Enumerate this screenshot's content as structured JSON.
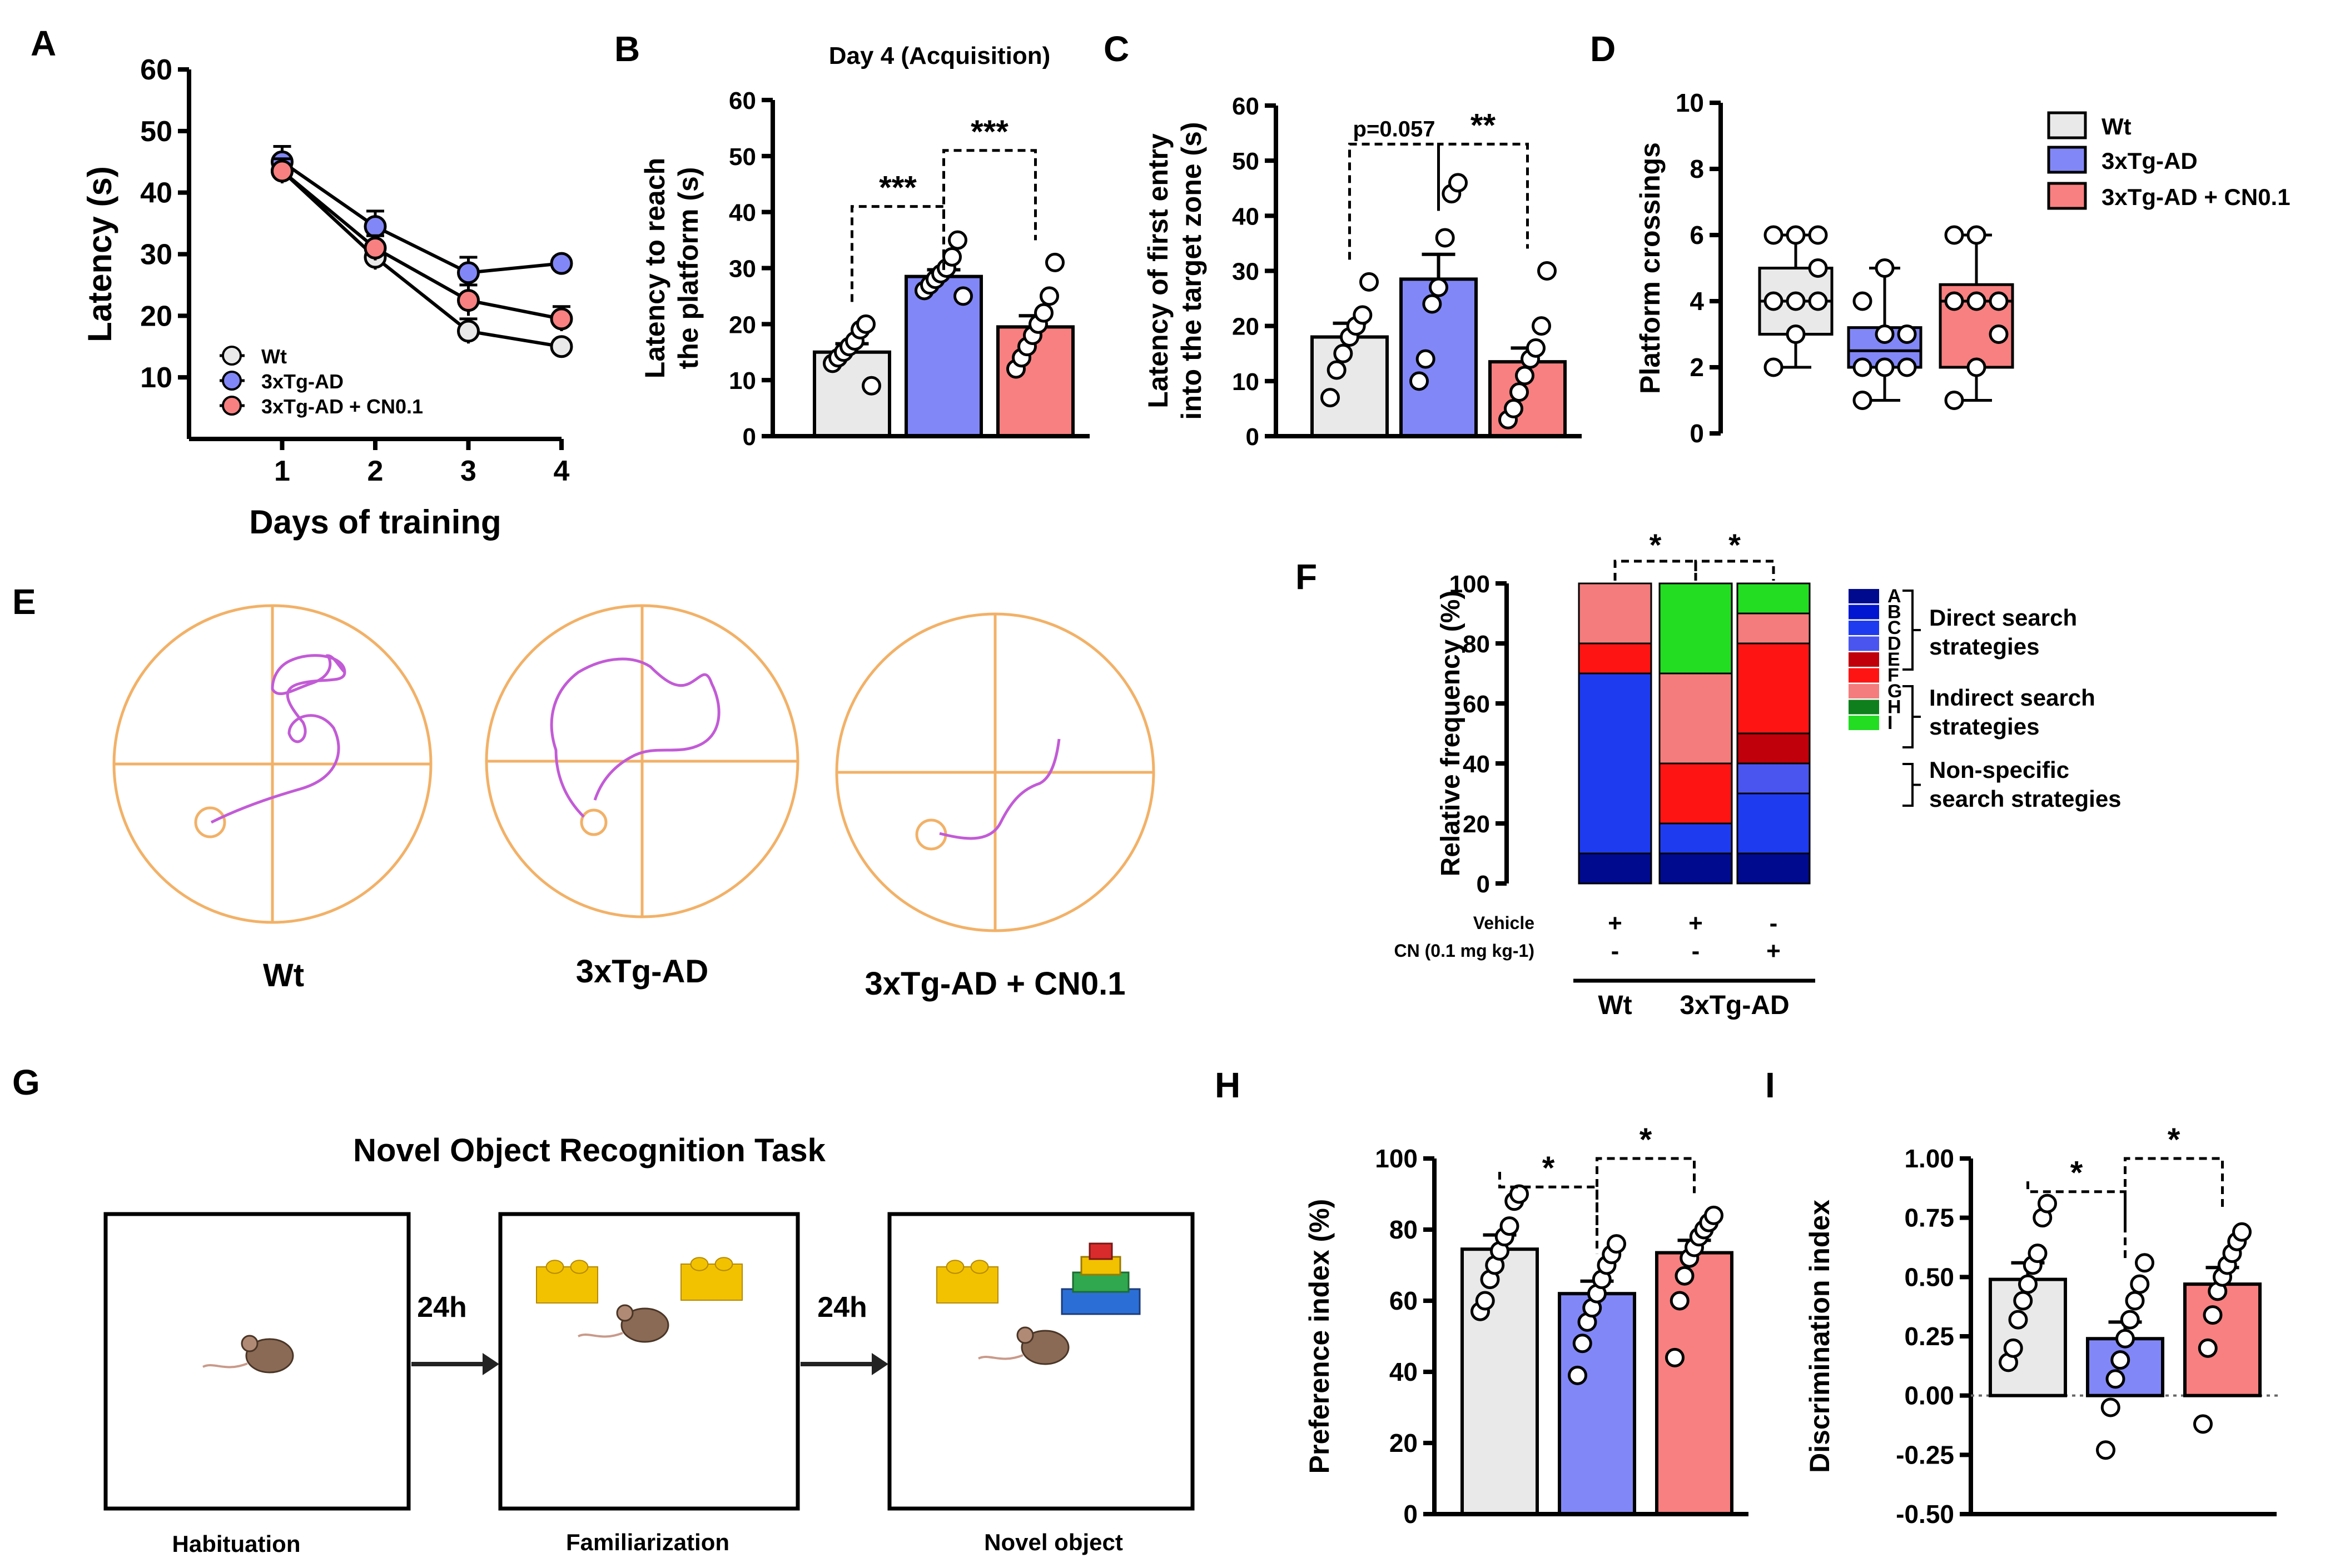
{
  "colors": {
    "wt": "#e9e9e9",
    "tg": "#8287f7",
    "cn": "#f88080",
    "maze": "#f2b167",
    "path": "#c25bd6"
  },
  "panelA": {
    "letter": "A",
    "chart_data": {
      "type": "line",
      "ylabel": "Latency (s)",
      "xlabel": "Days of training",
      "x": [
        1,
        2,
        3,
        4
      ],
      "xlim": [
        0,
        4
      ],
      "ylim": [
        0,
        60
      ],
      "yticks": [
        10,
        20,
        30,
        40,
        50,
        60
      ],
      "series": [
        {
          "name": "Wt",
          "key": "wt",
          "values": [
            43.5,
            29.5,
            17.5,
            15
          ],
          "err": [
            2,
            2,
            2,
            1
          ]
        },
        {
          "name": "3xTg-AD",
          "key": "tg",
          "values": [
            45,
            34.5,
            27,
            28.5
          ],
          "err": [
            2.5,
            2.5,
            2.5,
            1
          ]
        },
        {
          "name": "3xTg-AD + CN0.1",
          "key": "cn",
          "values": [
            43.5,
            31,
            22.5,
            19.5
          ],
          "err": [
            2,
            2,
            2.5,
            2
          ]
        }
      ]
    }
  },
  "panelB": {
    "letter": "B",
    "chart_data": {
      "type": "bar",
      "title": "Day 4 (Acquisition)",
      "ylabel": [
        "Latency to reach",
        "the platform (s)"
      ],
      "ylim": [
        0,
        60
      ],
      "yticks": [
        0,
        10,
        20,
        30,
        40,
        50,
        60
      ],
      "groups": [
        {
          "key": "wt",
          "mean": 15,
          "sem": 1.5,
          "points": [
            13,
            14,
            15,
            16,
            17,
            19,
            20,
            9
          ]
        },
        {
          "key": "tg",
          "mean": 28.5,
          "sem": 1.2,
          "points": [
            26,
            27,
            28,
            29,
            30,
            32,
            35,
            25
          ]
        },
        {
          "key": "cn",
          "mean": 19.5,
          "sem": 2,
          "points": [
            12,
            14,
            16,
            18,
            20,
            22,
            25,
            31
          ]
        }
      ],
      "sig": [
        {
          "from": 0,
          "to": 1,
          "label": "***",
          "y": 41
        },
        {
          "from": 1,
          "to": 2,
          "label": "***",
          "y": 51
        }
      ]
    }
  },
  "panelC": {
    "letter": "C",
    "chart_data": {
      "type": "bar",
      "ylabel": [
        "Latency of first entry",
        "into the target zone (s)"
      ],
      "ylim": [
        0,
        60
      ],
      "yticks": [
        0,
        10,
        20,
        30,
        40,
        50,
        60
      ],
      "groups": [
        {
          "key": "wt",
          "mean": 18,
          "sem": 2.5,
          "points": [
            7,
            12,
            15,
            18,
            20,
            22,
            28
          ]
        },
        {
          "key": "tg",
          "mean": 28.5,
          "sem": 4.5,
          "points": [
            10,
            14,
            24,
            27,
            36,
            44,
            46
          ]
        },
        {
          "key": "cn",
          "mean": 13.5,
          "sem": 2.5,
          "points": [
            3,
            5,
            8,
            11,
            14,
            16,
            20,
            30
          ]
        }
      ],
      "sig": [
        {
          "from": 0,
          "to": 1,
          "label": "p=0.057",
          "y": 53
        },
        {
          "from": 1,
          "to": 2,
          "label": "**",
          "y": 53
        }
      ]
    }
  },
  "panelD": {
    "letter": "D",
    "chart_data": {
      "type": "box",
      "ylabel": "Platform crossings",
      "ylim": [
        0,
        10
      ],
      "yticks": [
        0,
        2,
        4,
        6,
        8,
        10
      ],
      "groups": [
        {
          "key": "wt",
          "min": 2,
          "q1": 3,
          "median": 4,
          "q3": 5,
          "max": 6,
          "points": [
            2,
            3,
            4,
            4,
            4,
            5,
            6,
            6,
            6
          ]
        },
        {
          "key": "tg",
          "min": 1,
          "q1": 2,
          "median": 2.5,
          "q3": 3.2,
          "max": 5,
          "points": [
            1,
            2,
            2,
            2,
            3,
            3,
            4,
            5
          ]
        },
        {
          "key": "cn",
          "min": 1,
          "q1": 2,
          "median": 4,
          "q3": 4.5,
          "max": 6,
          "points": [
            1,
            2,
            3,
            4,
            4,
            4,
            6,
            6
          ]
        }
      ]
    }
  },
  "legendD": [
    {
      "key": "wt",
      "label": "Wt"
    },
    {
      "key": "tg",
      "label": "3xTg-AD"
    },
    {
      "key": "cn",
      "label": "3xTg-AD + CN0.1"
    }
  ],
  "panelE": {
    "letter": "E",
    "labels": [
      "Wt",
      "3xTg-AD",
      "3xTg-AD + CN0.1"
    ]
  },
  "panelF": {
    "letter": "F",
    "chart_data": {
      "type": "stacked-bar",
      "ylabel": "Relative frequency (%)",
      "ylim": [
        0,
        100
      ],
      "yticks": [
        0,
        20,
        40,
        60,
        80,
        100
      ],
      "segment_order": [
        "A",
        "B",
        "C",
        "D",
        "E",
        "F",
        "G",
        "H",
        "I"
      ],
      "segment_colors": {
        "A": "#000a8f",
        "B": "#0016d0",
        "C": "#1f3bf0",
        "D": "#4a55f0",
        "E": "#c0000a",
        "F": "#ff1414",
        "G": "#f47c7c",
        "H": "#0e7f1c",
        "I": "#22dd22"
      },
      "bars": [
        {
          "A": 10,
          "B": 0,
          "C": 60,
          "D": 0,
          "E": 0,
          "F": 10,
          "G": 20,
          "H": 0,
          "I": 0
        },
        {
          "A": 10,
          "B": 0,
          "C": 10,
          "D": 0,
          "E": 0,
          "F": 20,
          "G": 30,
          "H": 0,
          "I": 30
        },
        {
          "A": 10,
          "B": 0,
          "C": 20,
          "D": 10,
          "E": 10,
          "F": 30,
          "G": 10,
          "H": 0,
          "I": 10
        }
      ],
      "sig": [
        {
          "from": 0,
          "to": 1,
          "label": "*"
        },
        {
          "from": 1,
          "to": 2,
          "label": "*"
        }
      ],
      "rows": [
        {
          "label": "Vehicle",
          "values": [
            "+",
            "+",
            "-"
          ]
        },
        {
          "label": "CN (0.1 mg kg-1)",
          "values": [
            "-",
            "-",
            "+"
          ]
        }
      ],
      "groups": [
        {
          "label": "Wt",
          "bars": [
            0
          ]
        },
        {
          "label": "3xTg-AD",
          "bars": [
            1,
            2
          ]
        }
      ]
    },
    "legend": {
      "letters": [
        "A",
        "B",
        "C",
        "D",
        "E",
        "F",
        "G",
        "H",
        "I"
      ],
      "group1": [
        "Direct search",
        "strategies"
      ],
      "group2": [
        "Indirect search",
        "strategies"
      ],
      "group3": [
        "Non-specific",
        "search strategies"
      ]
    }
  },
  "panelG": {
    "letter": "G",
    "title": "Novel Object Recognition Task",
    "steps": [
      "Habituation",
      "Familiarization",
      "Novel object"
    ],
    "intervals": [
      "24h",
      "24h"
    ]
  },
  "panelH": {
    "letter": "H",
    "chart_data": {
      "type": "bar",
      "ylabel": "Preference index (%)",
      "ylim": [
        0,
        100
      ],
      "yticks": [
        0,
        20,
        40,
        60,
        80,
        100
      ],
      "groups": [
        {
          "key": "wt",
          "mean": 74.5,
          "sem": 4,
          "points": [
            57,
            60,
            66,
            70,
            74,
            78,
            81,
            88,
            90
          ]
        },
        {
          "key": "tg",
          "mean": 62,
          "sem": 3.5,
          "points": [
            39,
            48,
            54,
            58,
            62,
            66,
            70,
            73,
            76
          ]
        },
        {
          "key": "cn",
          "mean": 73.5,
          "sem": 3.5,
          "points": [
            44,
            60,
            67,
            72,
            75,
            78,
            80,
            82,
            84
          ]
        }
      ],
      "sig": [
        {
          "from": 0,
          "to": 1,
          "label": "*",
          "y": 92
        },
        {
          "from": 1,
          "to": 2,
          "label": "*",
          "y": 100
        }
      ]
    }
  },
  "panelI": {
    "letter": "I",
    "chart_data": {
      "type": "bar",
      "ylabel": "Discrimination index",
      "ylim": [
        -0.5,
        1.0
      ],
      "yticks": [
        -0.5,
        -0.25,
        0.0,
        0.25,
        0.5,
        0.75,
        1.0
      ],
      "ytick_labels": [
        "-0.50",
        "-0.25",
        "0.00",
        "0.25",
        "0.50",
        "0.75",
        "1.00"
      ],
      "groups": [
        {
          "key": "wt",
          "mean": 0.49,
          "sem": 0.07,
          "points": [
            0.14,
            0.2,
            0.32,
            0.4,
            0.47,
            0.55,
            0.6,
            0.75,
            0.81
          ]
        },
        {
          "key": "tg",
          "mean": 0.24,
          "sem": 0.07,
          "points": [
            -0.23,
            -0.05,
            0.07,
            0.15,
            0.24,
            0.32,
            0.4,
            0.47,
            0.56
          ]
        },
        {
          "key": "cn",
          "mean": 0.47,
          "sem": 0.07,
          "points": [
            -0.12,
            0.2,
            0.34,
            0.44,
            0.5,
            0.55,
            0.6,
            0.65,
            0.69
          ]
        }
      ],
      "sig": [
        {
          "from": 0,
          "to": 1,
          "label": "*",
          "y": 0.86
        },
        {
          "from": 1,
          "to": 2,
          "label": "*",
          "y": 1.0
        }
      ]
    }
  }
}
